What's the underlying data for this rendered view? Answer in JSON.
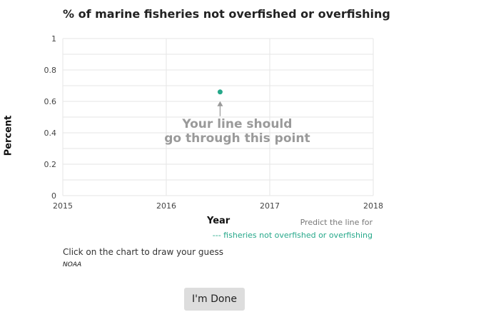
{
  "chart_data": {
    "type": "line",
    "title": "% of marine fisheries not overfished or overfishing",
    "xlabel": "Year",
    "ylabel": "Percent",
    "xlim": [
      2015,
      2018
    ],
    "ylim": [
      0,
      1
    ],
    "x_ticks": [
      "2015",
      "2016",
      "2017",
      "2018"
    ],
    "y_ticks": [
      "0",
      "0.2",
      "0.4",
      "0.6",
      "0.8",
      "1"
    ],
    "grid": true,
    "points": [
      {
        "x": 2016.52,
        "y": 0.66
      }
    ],
    "annotation": {
      "line1": "Your line should",
      "line2": "go through this point"
    },
    "legend": {
      "prompt": "Predict the line for",
      "series_label": "--- fisheries not overfished or overfishing",
      "color": "#26a88a"
    }
  },
  "instruction": "Click on the chart to draw your guess",
  "source": "NOAA",
  "done_button_label": "I'm Done"
}
